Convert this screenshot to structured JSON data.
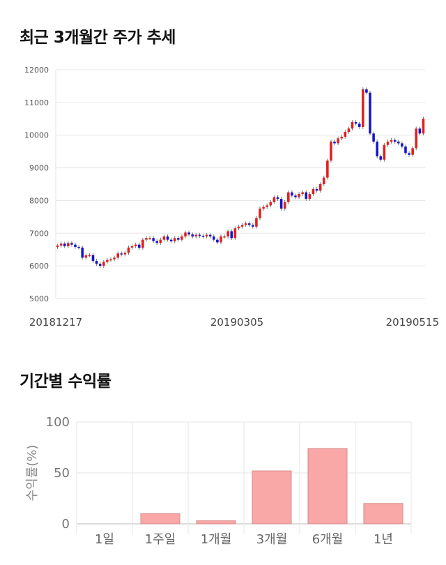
{
  "sections": {
    "price_title": "최근 3개월간 주가 추세",
    "returns_title": "기간별 수익률"
  },
  "chart_data": [
    {
      "type": "candlestick",
      "title": "최근 3개월간 주가 추세",
      "ylim": [
        5000,
        12000
      ],
      "yticks": [
        5000,
        6000,
        7000,
        8000,
        9000,
        10000,
        11000,
        12000
      ],
      "x_tick_labels": [
        "20181217",
        "20190305",
        "20190515"
      ],
      "grid": true,
      "colors": {
        "up": "#e0201e",
        "down": "#1515c8",
        "grid": "#e6e6e6"
      },
      "closes": [
        6620,
        6680,
        6600,
        6700,
        6650,
        6580,
        6560,
        6250,
        6320,
        6330,
        6150,
        6060,
        6000,
        6120,
        6180,
        6200,
        6250,
        6380,
        6350,
        6400,
        6560,
        6600,
        6650,
        6550,
        6800,
        6850,
        6850,
        6760,
        6700,
        6800,
        6900,
        6800,
        6750,
        6850,
        6800,
        6900,
        7020,
        6960,
        6900,
        6950,
        6920,
        6900,
        6950,
        6900,
        6800,
        6720,
        6900,
        6900,
        7060,
        6850,
        7150,
        7200,
        7250,
        7300,
        7250,
        7200,
        7460,
        7750,
        7800,
        7850,
        7950,
        8100,
        8050,
        7750,
        7950,
        8250,
        8150,
        8100,
        8200,
        8250,
        8050,
        8200,
        8350,
        8300,
        8500,
        8700,
        9220,
        9800,
        9750,
        9900,
        9950,
        10100,
        10200,
        10400,
        10350,
        10250,
        11400,
        11300,
        10050,
        9800,
        9350,
        9250,
        9700,
        9800,
        9850,
        9800,
        9750,
        9650,
        9450,
        9400,
        9600,
        10200,
        10050,
        10500
      ]
    },
    {
      "type": "bar",
      "categories": [
        "1일",
        "1주일",
        "1개월",
        "3개월",
        "6개월",
        "1년"
      ],
      "values": [
        0,
        10,
        3,
        52,
        74,
        20
      ],
      "ylabel": "수익률(%)",
      "ylim": [
        0,
        100
      ],
      "yticks": [
        0,
        50,
        100
      ],
      "grid": true,
      "colors": {
        "bar": "#f9a7a7",
        "bar_edge": "#d98a8a",
        "grid": "#e6e6e6"
      }
    }
  ]
}
